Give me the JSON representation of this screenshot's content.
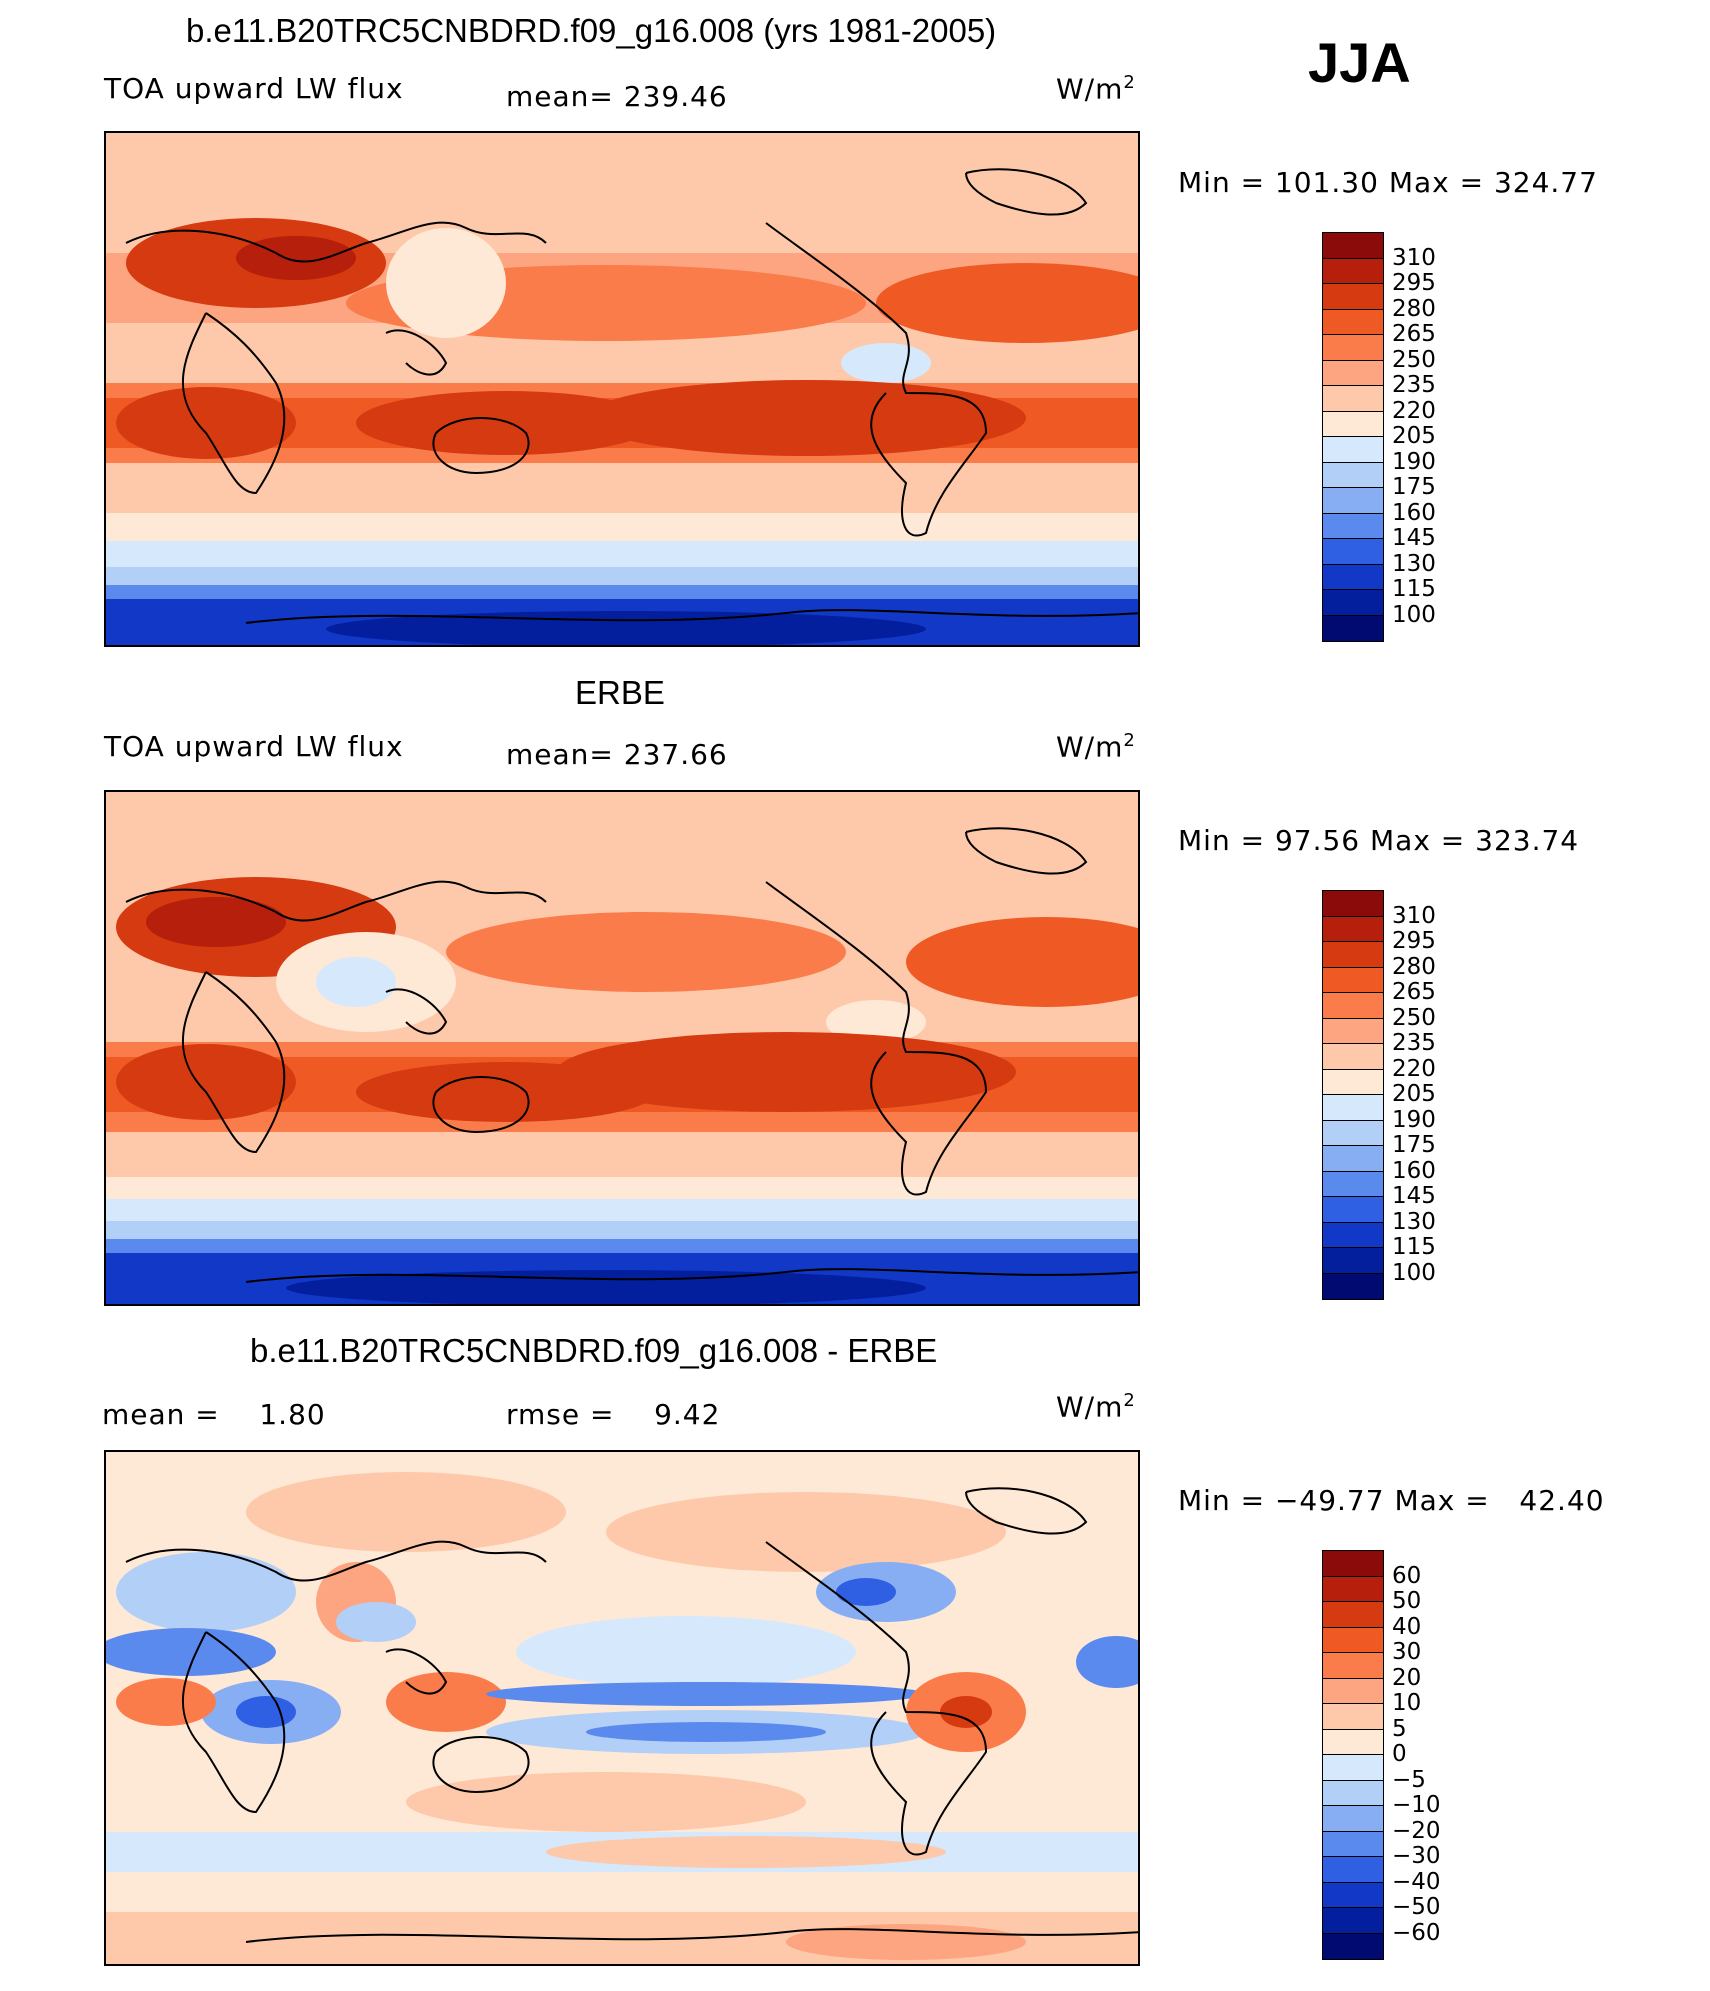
{
  "season": "JJA",
  "chart_data": [
    {
      "type": "heatmap",
      "title": "b.e11.B20TRC5CNBDRD.f09_g16.008 (yrs 1981-2005)",
      "variable": "TOA upward LW flux",
      "stat_text": "mean= 239.46",
      "units": "W/m",
      "units_sup": "2",
      "minmax_text": "Min = 101.30 Max = 324.77",
      "min": 101.3,
      "max": 324.77,
      "mean": 239.46,
      "levels": [
        "310",
        "295",
        "280",
        "265",
        "250",
        "235",
        "220",
        "205",
        "190",
        "175",
        "160",
        "145",
        "130",
        "115",
        "100"
      ],
      "colors": [
        "#8b0a0a",
        "#b51f0b",
        "#d63a10",
        "#ef5a24",
        "#fa7c4a",
        "#fca580",
        "#fdc9aa",
        "#fee8d6",
        "#d6e8fb",
        "#b2cff7",
        "#87aef3",
        "#5a8aee",
        "#2f60e3",
        "#1238c8",
        "#041f9e",
        "#000a70"
      ]
    },
    {
      "type": "heatmap",
      "title": "ERBE",
      "variable": "TOA upward LW flux",
      "stat_text": "mean= 237.66",
      "units": "W/m",
      "units_sup": "2",
      "minmax_text": "Min =  97.56 Max = 323.74",
      "min": 97.56,
      "max": 323.74,
      "mean": 237.66,
      "levels": [
        "310",
        "295",
        "280",
        "265",
        "250",
        "235",
        "220",
        "205",
        "190",
        "175",
        "160",
        "145",
        "130",
        "115",
        "100"
      ],
      "colors": [
        "#8b0a0a",
        "#b51f0b",
        "#d63a10",
        "#ef5a24",
        "#fa7c4a",
        "#fca580",
        "#fdc9aa",
        "#fee8d6",
        "#d6e8fb",
        "#b2cff7",
        "#87aef3",
        "#5a8aee",
        "#2f60e3",
        "#1238c8",
        "#041f9e",
        "#000a70"
      ]
    },
    {
      "type": "heatmap",
      "title": "b.e11.B20TRC5CNBDRD.f09_g16.008 - ERBE",
      "stat_left": "mean =    1.80",
      "stat_text": "rmse =    9.42",
      "units": "W/m",
      "units_sup": "2",
      "minmax_text": "Min = −49.77 Max =   42.40",
      "min": -49.77,
      "max": 42.4,
      "mean": 1.8,
      "rmse": 9.42,
      "levels": [
        "60",
        "50",
        "40",
        "30",
        "20",
        "10",
        "5",
        "0",
        "−5",
        "−10",
        "−20",
        "−30",
        "−40",
        "−50",
        "−60"
      ],
      "colors": [
        "#8b0a0a",
        "#b51f0b",
        "#d63a10",
        "#ef5a24",
        "#fa7c4a",
        "#fca580",
        "#fdc9aa",
        "#fee8d6",
        "#d6e8fb",
        "#b2cff7",
        "#87aef3",
        "#5a8aee",
        "#2f60e3",
        "#1238c8",
        "#041f9e",
        "#000a70"
      ]
    }
  ]
}
